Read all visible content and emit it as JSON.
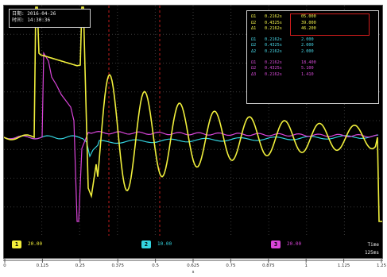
{
  "info": {
    "date_label": "日期",
    "date_value": "2016-04-26",
    "time_label": "时间",
    "time_value": "14:30:36"
  },
  "measurements": {
    "rows_top": [
      {
        "key": "Ω1",
        "a": "0.2162s",
        "b": "05.000"
      },
      {
        "key": "Ω2",
        "a": "0.4325s",
        "b": "39.000"
      },
      {
        "key": "Δ1",
        "a": "0.2162s",
        "b": "46.200"
      }
    ],
    "rows_mid": [
      {
        "key": "Ω1",
        "a": "0.2162s",
        "b": "2.000"
      },
      {
        "key": "Ω2",
        "a": "0.4325s",
        "b": "2.000"
      },
      {
        "key": "Δ2",
        "a": "0.2162s",
        "b": "2.000"
      }
    ],
    "rows_bot": [
      {
        "key": "Ω1",
        "a": "0.2162s",
        "b": "18.400"
      },
      {
        "key": "Ω2",
        "a": "0.4325s",
        "b": "5.100"
      },
      {
        "key": "Δ3",
        "a": "0.2162s",
        "b": "1.410"
      }
    ],
    "colors": {
      "top": "#f2f24a",
      "mid": "#48d6e6",
      "bot": "#d54ad6"
    }
  },
  "channels": [
    {
      "id": "1",
      "value": "20.00",
      "color": "#f2ee3a"
    },
    {
      "id": "2",
      "value": "10.00",
      "color": "#34d3df"
    },
    {
      "id": "3",
      "value": "20.00",
      "color": "#d945d9"
    }
  ],
  "timebase": {
    "label": "Time",
    "value": "125ms"
  },
  "xaxis": {
    "ticks": [
      "0",
      "0.125",
      "0.25",
      "0.375",
      "0.5",
      "0.625",
      "0.75",
      "0.875",
      "1",
      "1.125",
      "1.25"
    ],
    "unit": "s"
  },
  "waveforms": {
    "colors": {
      "ch1": "#f0ef3c",
      "ch2": "#34d3df",
      "ch3": "#d945d9",
      "grid": "#3a3a3a",
      "cursor": "#c01c1c"
    }
  }
}
